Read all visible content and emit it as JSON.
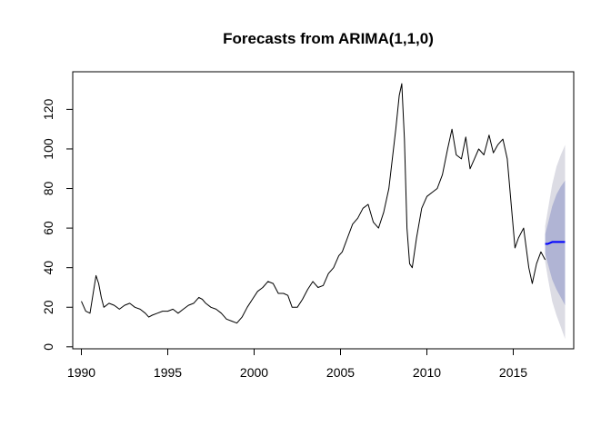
{
  "chart_data": {
    "type": "line",
    "title": "Forecasts from ARIMA(1,1,0)",
    "xlabel": "",
    "ylabel": "",
    "xlim": [
      1989.5,
      2018.5
    ],
    "ylim": [
      -1,
      139
    ],
    "x_ticks": [
      1990,
      1995,
      2000,
      2005,
      2010,
      2015
    ],
    "x_tick_labels": [
      "1990",
      "1995",
      "2000",
      "2005",
      "2010",
      "2015"
    ],
    "y_ticks": [
      0,
      20,
      40,
      60,
      80,
      100,
      120
    ],
    "y_tick_labels": [
      "0",
      "20",
      "40",
      "60",
      "80",
      "100",
      "120"
    ],
    "grid": false,
    "legend": "none",
    "colors": {
      "series": "#000000",
      "forecast": "#0000ff",
      "band_80": "#b0b4d4",
      "band_95": "#dcdce4"
    },
    "series": [
      {
        "role": "observed",
        "x": [
          1990.0,
          1990.25,
          1990.5,
          1990.7,
          1990.85,
          1991.0,
          1991.15,
          1991.3,
          1991.6,
          1991.9,
          1992.2,
          1992.5,
          1992.8,
          1993.1,
          1993.4,
          1993.7,
          1993.9,
          1994.1,
          1994.4,
          1994.7,
          1995.0,
          1995.3,
          1995.6,
          1995.9,
          1996.2,
          1996.5,
          1996.8,
          1997.0,
          1997.2,
          1997.5,
          1997.8,
          1998.1,
          1998.4,
          1998.7,
          1999.0,
          1999.3,
          1999.6,
          1999.9,
          2000.2,
          2000.5,
          2000.8,
          2001.1,
          2001.4,
          2001.7,
          2001.95,
          2002.2,
          2002.5,
          2002.8,
          2003.1,
          2003.4,
          2003.7,
          2004.0,
          2004.3,
          2004.6,
          2004.9,
          2005.1,
          2005.4,
          2005.7,
          2006.0,
          2006.3,
          2006.6,
          2006.9,
          2007.2,
          2007.5,
          2007.8,
          2008.0,
          2008.2,
          2008.4,
          2008.55,
          2008.7,
          2008.85,
          2009.0,
          2009.15,
          2009.4,
          2009.7,
          2010.0,
          2010.3,
          2010.6,
          2010.9,
          2011.2,
          2011.45,
          2011.7,
          2012.0,
          2012.25,
          2012.5,
          2012.75,
          2013.0,
          2013.3,
          2013.6,
          2013.85,
          2014.1,
          2014.4,
          2014.65,
          2014.9,
          2015.1,
          2015.3,
          2015.6,
          2015.9,
          2016.1,
          2016.35,
          2016.6,
          2016.85
        ],
        "y": [
          23,
          18,
          17,
          28,
          36,
          32,
          25,
          20,
          22,
          21,
          19,
          21,
          22,
          20,
          19,
          17,
          15,
          16,
          17,
          18,
          18,
          19,
          17,
          19,
          21,
          22,
          25,
          24,
          22,
          20,
          19,
          17,
          14,
          13,
          12,
          15,
          20,
          24,
          28,
          30,
          33,
          32,
          27,
          27,
          26,
          20,
          20,
          24,
          29,
          33,
          30,
          31,
          37,
          40,
          46,
          48,
          55,
          62,
          65,
          70,
          72,
          63,
          60,
          68,
          80,
          95,
          110,
          127,
          133,
          105,
          60,
          42,
          40,
          55,
          70,
          76,
          78,
          80,
          87,
          100,
          110,
          97,
          95,
          106,
          90,
          95,
          100,
          97,
          107,
          98,
          102,
          105,
          95,
          70,
          50,
          55,
          60,
          40,
          32,
          42,
          48,
          44
        ]
      },
      {
        "role": "forecast",
        "x": [
          2016.85,
          2017.0,
          2017.25,
          2017.5,
          2017.75,
          2018.0
        ],
        "y": [
          52,
          52,
          53,
          53,
          53,
          53
        ]
      }
    ],
    "intervals": [
      {
        "level": 95,
        "x": [
          2016.85,
          2017.0,
          2017.25,
          2017.5,
          2017.75,
          2018.0
        ],
        "lower": [
          43,
          35,
          23,
          16,
          10,
          4
        ],
        "upper": [
          61,
          69,
          82,
          91,
          97,
          102
        ]
      },
      {
        "level": 80,
        "x": [
          2016.85,
          2017.0,
          2017.25,
          2017.5,
          2017.75,
          2018.0
        ],
        "lower": [
          47,
          42,
          34,
          29,
          25,
          21
        ],
        "upper": [
          57,
          62,
          71,
          77,
          81,
          84
        ]
      }
    ]
  }
}
